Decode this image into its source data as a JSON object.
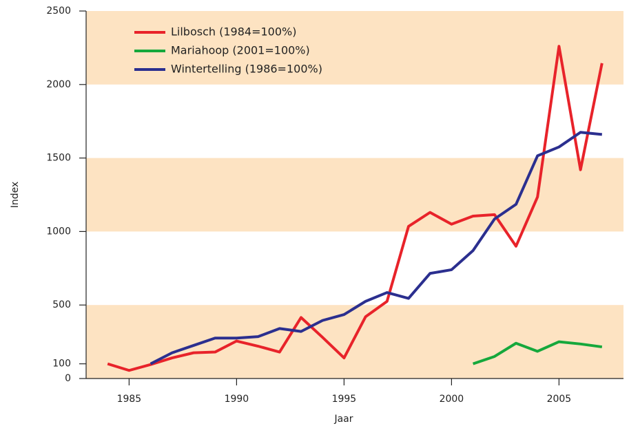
{
  "chart_data": {
    "type": "line",
    "xlabel": "Jaar",
    "ylabel": "Index",
    "x": [
      1984,
      1985,
      1986,
      1987,
      1988,
      1989,
      1990,
      1991,
      1992,
      1993,
      1994,
      1995,
      1996,
      1997,
      1998,
      1999,
      2000,
      2001,
      2002,
      2003,
      2004,
      2005,
      2006,
      2007
    ],
    "series": [
      {
        "name": "Lilbosch (1984=100%)",
        "color": "#e8232a",
        "values": [
          100,
          55,
          95,
          140,
          175,
          180,
          255,
          220,
          180,
          415,
          280,
          140,
          420,
          525,
          1035,
          1130,
          1050,
          1105,
          1115,
          900,
          1235,
          2260,
          1420,
          2145
        ]
      },
      {
        "name": "Mariahoop (2001=100%)",
        "color": "#16a83c",
        "values": [
          null,
          null,
          null,
          null,
          null,
          null,
          null,
          null,
          null,
          null,
          null,
          null,
          null,
          null,
          null,
          null,
          null,
          100,
          150,
          240,
          185,
          250,
          235,
          215
        ]
      },
      {
        "name": "Wintertelling (1986=100%)",
        "color": "#2b2f8f",
        "values": [
          null,
          null,
          100,
          175,
          225,
          275,
          275,
          285,
          340,
          320,
          395,
          435,
          525,
          585,
          545,
          715,
          740,
          870,
          1085,
          1185,
          1515,
          1575,
          1675,
          1660
        ]
      }
    ],
    "xlim": [
      1983,
      2008
    ],
    "xticks": [
      1985,
      1990,
      1995,
      2000,
      2005
    ],
    "ylim": [
      0,
      2500
    ],
    "yticks": [
      0,
      100,
      500,
      1000,
      1500,
      2000,
      2500
    ],
    "bands": [
      [
        0,
        500
      ],
      [
        1000,
        1500
      ],
      [
        2000,
        2500
      ]
    ],
    "band_color": "#fde3c2",
    "legend": "upper left"
  }
}
